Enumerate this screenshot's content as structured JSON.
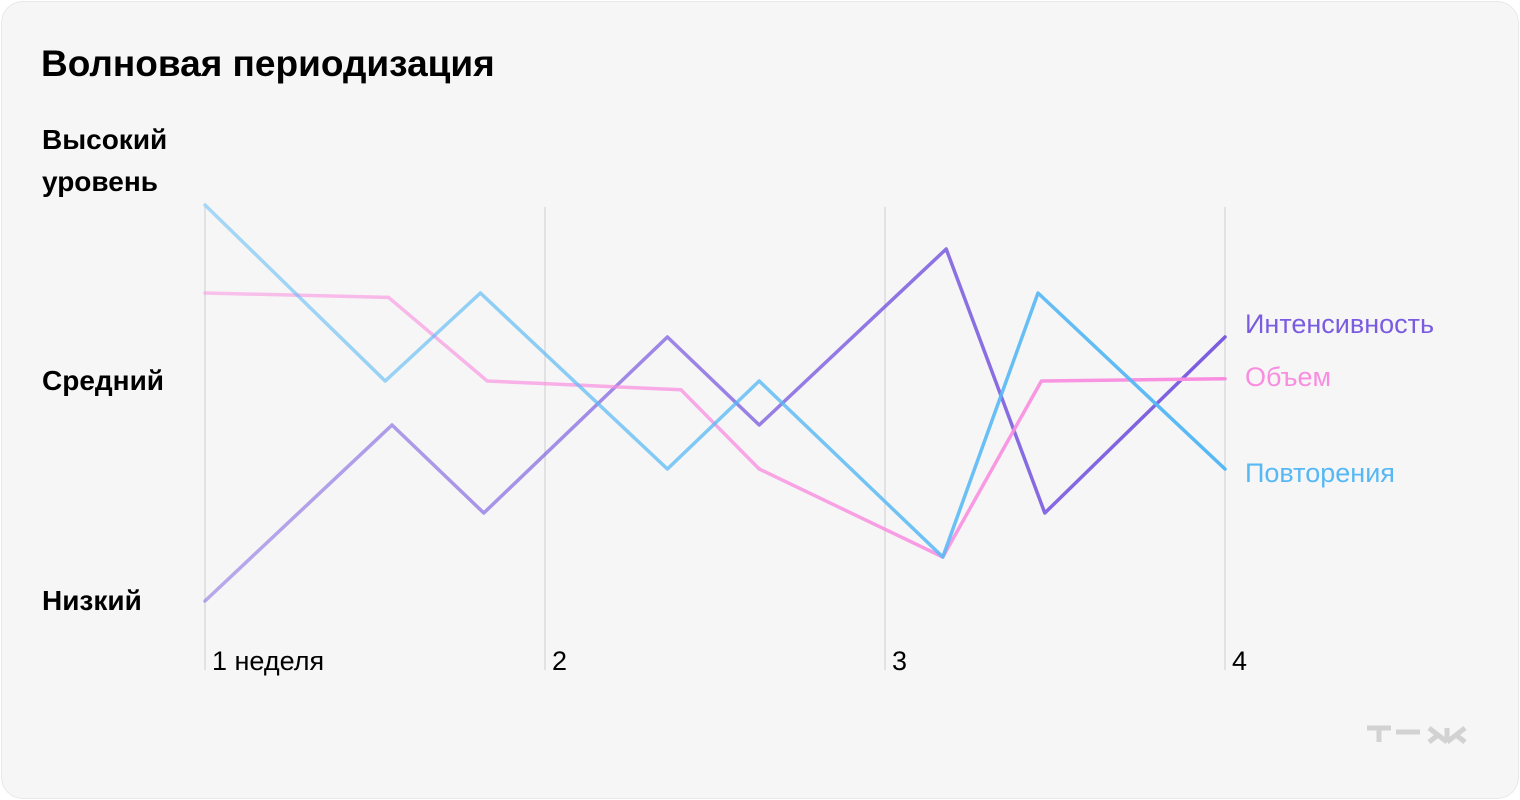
{
  "chart_data": {
    "type": "line",
    "title": "Волновая периодизация",
    "xlim": [
      1,
      4
    ],
    "xticks": [
      {
        "value": 1,
        "label": "1 неделя"
      },
      2,
      3,
      4
    ],
    "ylim": [
      0,
      10
    ],
    "yticks": [
      {
        "value": 0,
        "label": "Низкий"
      },
      {
        "value": 5,
        "label": "Средний"
      },
      {
        "value": 10,
        "label": "Высокий уровень"
      }
    ],
    "grid": true,
    "series": [
      {
        "name": "Интенсивность",
        "color": "#7b5ce0",
        "x": [
          1,
          1.55,
          1.82,
          2.36,
          2.63,
          3.18,
          3.47,
          4
        ],
        "values": [
          0,
          4,
          2,
          6,
          4,
          8,
          2,
          6
        ]
      },
      {
        "name": "Объем",
        "color": "#f98de0",
        "x": [
          1,
          1.54,
          1.83,
          2.4,
          2.63,
          3.17,
          3.46,
          4
        ],
        "values": [
          7,
          6.9,
          5,
          4.8,
          3,
          1,
          5,
          5.05
        ]
      },
      {
        "name": "Повторения",
        "color": "#56b8f5",
        "x": [
          1,
          1.53,
          1.81,
          2.36,
          2.63,
          3.17,
          3.45,
          4
        ],
        "values": [
          9,
          5,
          7,
          3,
          5,
          1,
          7,
          3
        ]
      }
    ]
  }
}
